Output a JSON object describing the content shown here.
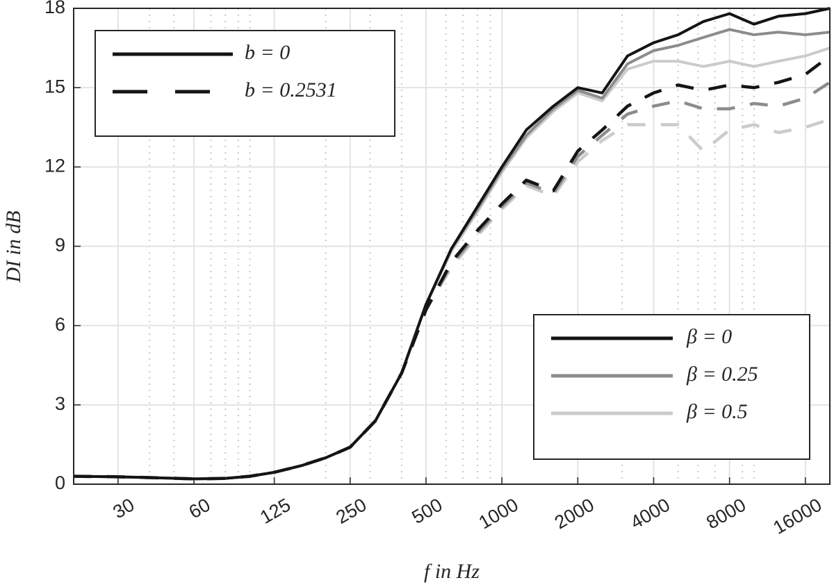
{
  "chart_data": {
    "type": "line",
    "x_label": "f in Hz",
    "y_label": "DI in dB",
    "x": [
      20,
      30,
      40,
      60,
      80,
      100,
      125,
      160,
      200,
      250,
      315,
      400,
      500,
      630,
      800,
      1000,
      1250,
      1600,
      2000,
      2500,
      3150,
      4000,
      5000,
      6300,
      8000,
      10000,
      12500,
      16000,
      20000
    ],
    "series": [
      {
        "color": "#141414",
        "dashed": false,
        "values": [
          0.3,
          0.28,
          0.25,
          0.2,
          0.22,
          0.3,
          0.45,
          0.7,
          1.0,
          1.4,
          2.4,
          4.2,
          6.8,
          8.9,
          10.5,
          12.0,
          13.4,
          14.3,
          15.0,
          14.8,
          16.2,
          16.7,
          17.0,
          17.5,
          17.8,
          17.4,
          17.7,
          17.8,
          18.0
        ]
      },
      {
        "color": "#8c8c8c",
        "dashed": false,
        "values": [
          0.3,
          0.28,
          0.25,
          0.2,
          0.22,
          0.3,
          0.45,
          0.7,
          1.0,
          1.4,
          2.4,
          4.2,
          6.8,
          8.9,
          10.4,
          11.9,
          13.2,
          14.2,
          14.9,
          14.6,
          15.9,
          16.4,
          16.6,
          16.9,
          17.2,
          17.0,
          17.1,
          17.0,
          17.1
        ]
      },
      {
        "color": "#cbcbcb",
        "dashed": false,
        "values": [
          0.3,
          0.28,
          0.25,
          0.2,
          0.22,
          0.3,
          0.45,
          0.7,
          1.0,
          1.4,
          2.4,
          4.2,
          6.8,
          8.8,
          10.3,
          11.8,
          13.1,
          14.1,
          14.8,
          14.5,
          15.7,
          16.0,
          16.0,
          15.8,
          16.0,
          15.8,
          16.0,
          16.2,
          16.5
        ]
      },
      {
        "color": "#141414",
        "dashed": true,
        "values": [
          0.3,
          0.28,
          0.25,
          0.2,
          0.22,
          0.3,
          0.45,
          0.7,
          1.0,
          1.4,
          2.4,
          4.2,
          6.6,
          8.4,
          9.6,
          10.6,
          11.5,
          11.1,
          12.6,
          13.4,
          14.3,
          14.8,
          15.1,
          14.9,
          15.1,
          15.0,
          15.2,
          15.5,
          16.2
        ]
      },
      {
        "color": "#8c8c8c",
        "dashed": true,
        "values": [
          0.3,
          0.28,
          0.25,
          0.2,
          0.22,
          0.3,
          0.45,
          0.7,
          1.0,
          1.4,
          2.4,
          4.2,
          6.6,
          8.3,
          9.5,
          10.5,
          11.4,
          11.0,
          12.4,
          13.2,
          14.0,
          14.3,
          14.5,
          14.2,
          14.2,
          14.4,
          14.3,
          14.6,
          15.2
        ]
      },
      {
        "color": "#cbcbcb",
        "dashed": true,
        "values": [
          0.3,
          0.28,
          0.25,
          0.2,
          0.22,
          0.3,
          0.45,
          0.7,
          1.0,
          1.4,
          2.4,
          4.2,
          6.6,
          8.2,
          9.4,
          10.4,
          11.3,
          10.9,
          12.2,
          13.0,
          13.6,
          13.6,
          13.6,
          12.6,
          13.4,
          13.6,
          13.3,
          13.5,
          13.8
        ]
      }
    ],
    "xlog": true,
    "xlim": [
      20,
      20000
    ],
    "xticks": [
      30,
      60,
      125,
      250,
      500,
      1000,
      2000,
      4000,
      8000,
      16000
    ],
    "xminorticks": [
      40,
      50,
      70,
      80,
      90,
      100,
      200,
      300,
      400,
      600,
      700,
      800,
      900,
      3000,
      5000,
      6000,
      7000,
      9000,
      10000
    ],
    "ylim": [
      0,
      18
    ],
    "yticks": [
      0,
      3,
      6,
      9,
      12,
      15,
      18
    ],
    "grid": true,
    "legends": [
      {
        "position": "upper left",
        "entries": [
          {
            "label": "b = 0",
            "color": "#141414",
            "dashed": false
          },
          {
            "label": "b = 0.2531",
            "color": "#141414",
            "dashed": true
          }
        ]
      },
      {
        "position": "lower right",
        "entries": [
          {
            "label": "β = 0",
            "color": "#141414",
            "dashed": false
          },
          {
            "label": "β = 0.25",
            "color": "#8c8c8c",
            "dashed": false
          },
          {
            "label": "β = 0.5",
            "color": "#cbcbcb",
            "dashed": false
          }
        ]
      }
    ]
  }
}
